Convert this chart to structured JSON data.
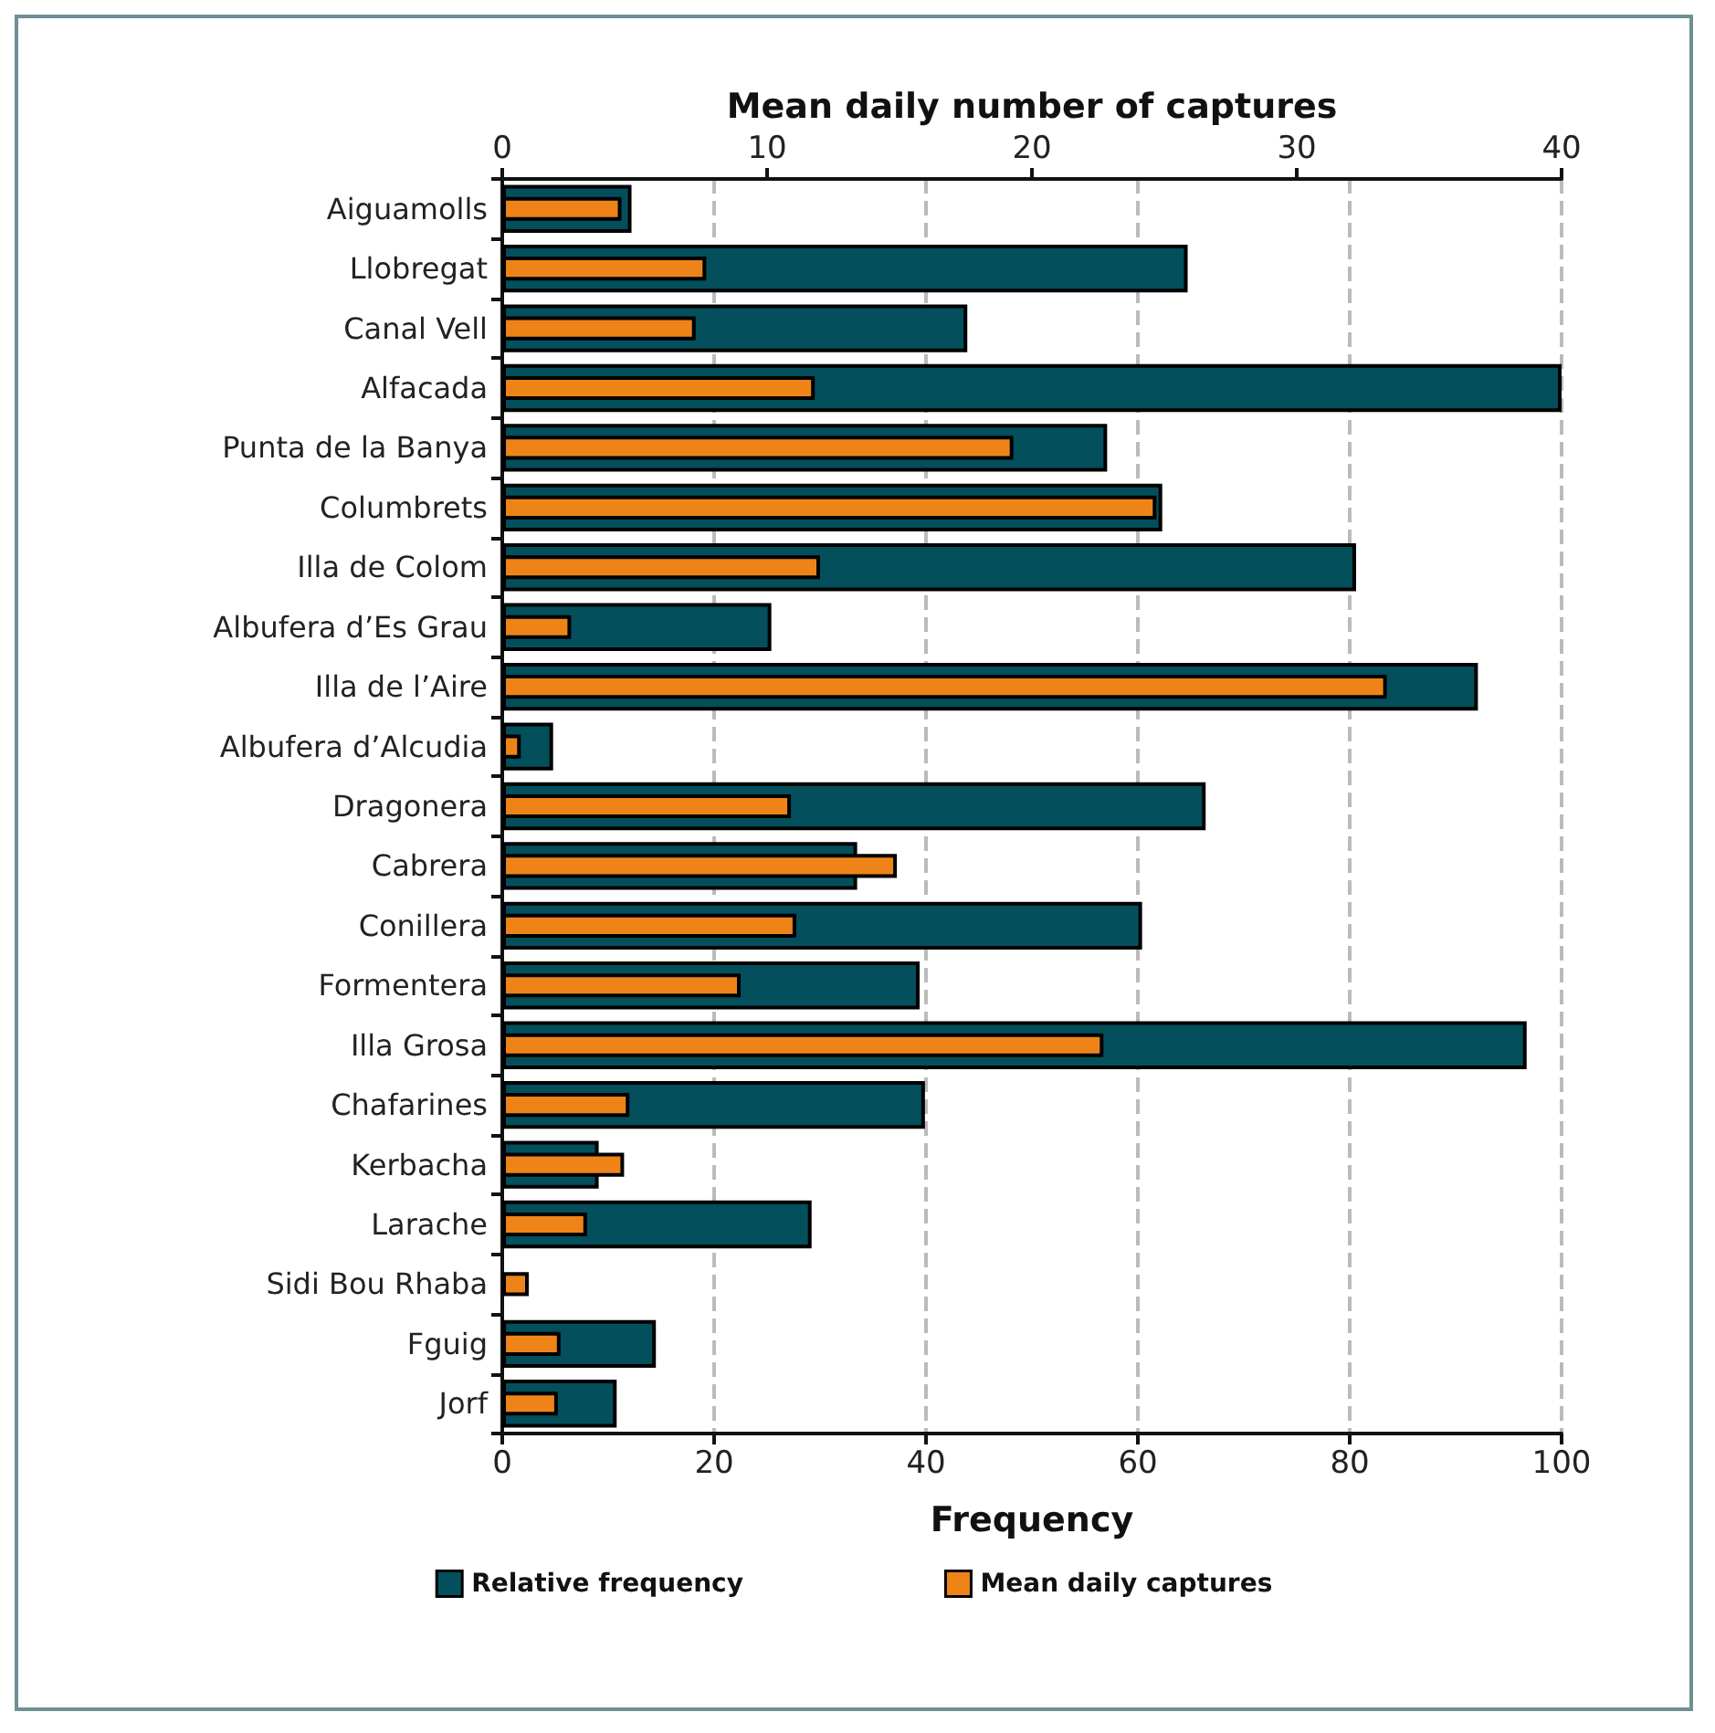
{
  "chart_data": {
    "type": "bar",
    "orientation": "horizontal",
    "xlabel": "Frequency",
    "x2label": "Mean daily number of captures",
    "categories": [
      "Aiguamolls",
      "Llobregat",
      "Canal Vell",
      "Alfacada",
      "Punta de la Banya",
      "Columbrets",
      "Illa de Colom",
      "Albufera d’Es Grau",
      "Illa de l’Aire",
      "Albufera d’Alcudia",
      "Dragonera",
      "Cabrera",
      "Conillera",
      "Formentera",
      "Illa Grosa",
      "Chafarines",
      "Kerbacha",
      "Larache",
      "Sidi Bou Rhaba",
      "Fguig",
      "Jorf"
    ],
    "series": [
      {
        "name": "Relative frequency",
        "color": "#034f5c",
        "values": [
          12.2,
          64.7,
          43.9,
          100,
          57.1,
          62.3,
          80.6,
          25.4,
          92.1,
          4.8,
          66.4,
          33.5,
          60.4,
          39.4,
          96.7,
          39.9,
          9.1,
          29.2,
          0,
          14.5,
          10.8
        ]
      },
      {
        "name": "Mean daily captures",
        "color": "#ee8418",
        "axis": "x2",
        "values": [
          4.5,
          7.7,
          7.3,
          11.8,
          19.3,
          24.7,
          12.0,
          2.6,
          33.4,
          0.7,
          10.9,
          14.9,
          11.1,
          9.0,
          22.7,
          4.8,
          4.6,
          3.2,
          1.0,
          2.2,
          2.1
        ]
      }
    ],
    "xlim": [
      0,
      100
    ],
    "xticks": [
      0,
      20,
      40,
      60,
      80,
      100
    ],
    "x2lim": [
      0,
      40
    ],
    "x2ticks": [
      0,
      10,
      20,
      30,
      40
    ],
    "grid": "x",
    "legend": "bottom"
  }
}
